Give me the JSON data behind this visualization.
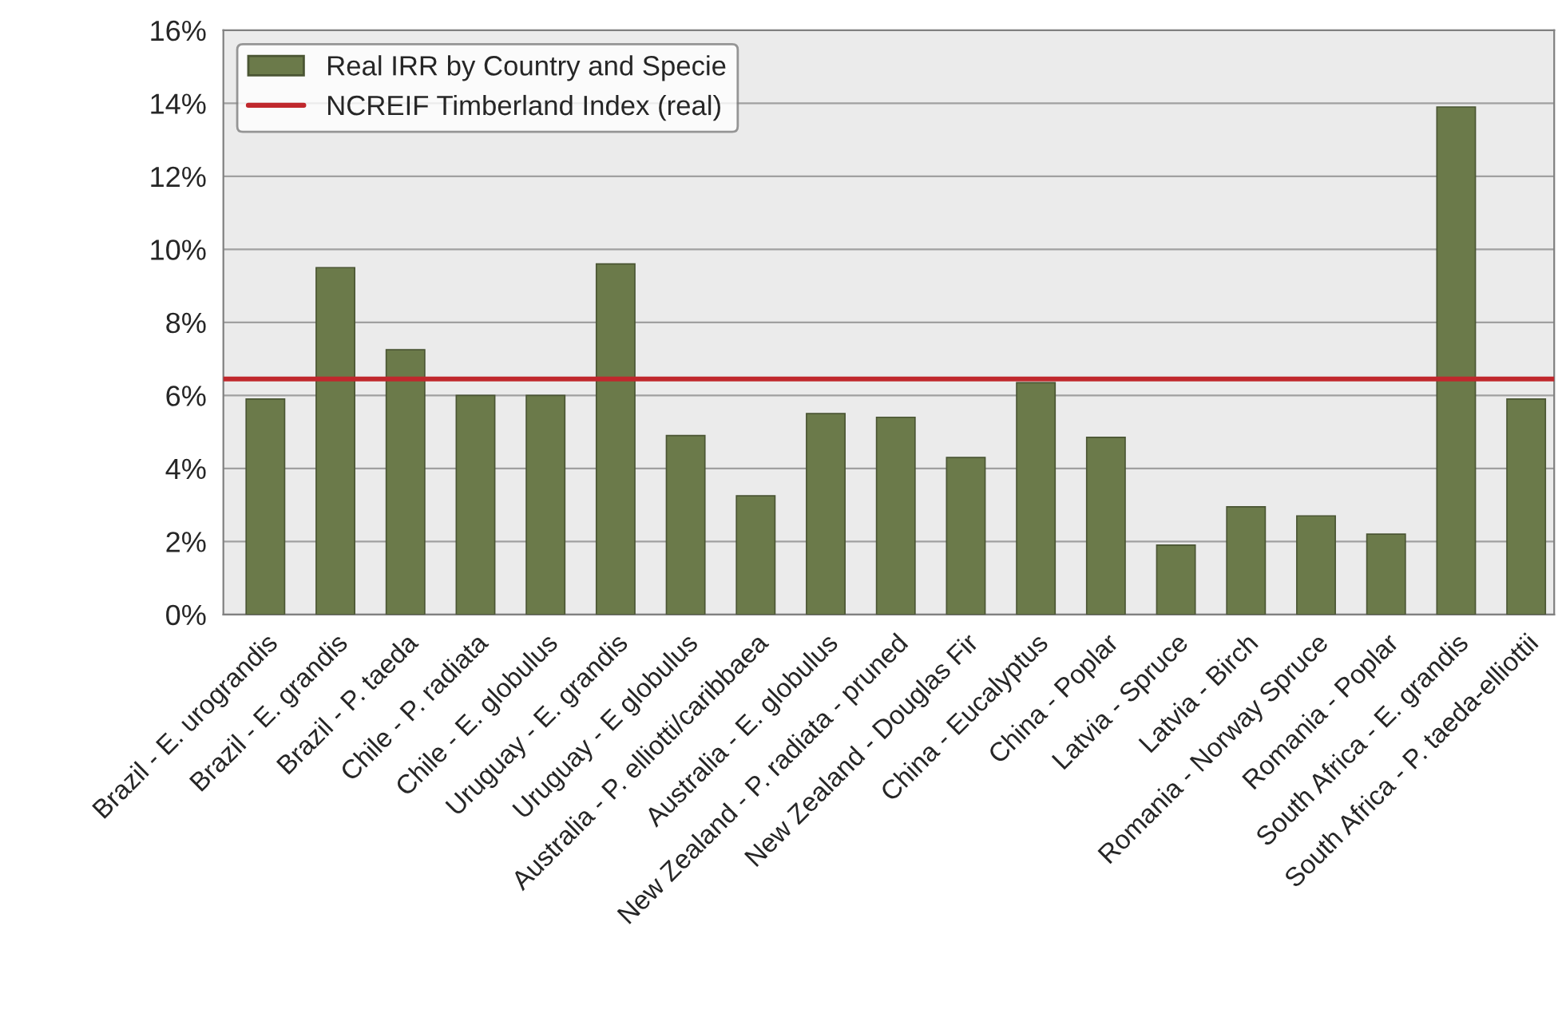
{
  "chart_data": {
    "type": "bar",
    "categories": [
      "Brazil - E. urograndis",
      "Brazil - E. grandis",
      "Brazil - P. taeda",
      "Chile - P. radiata",
      "Chile - E. globulus",
      "Uruguay - E. grandis",
      "Uruguay - E globulus",
      "Australia - P. elliotti/caribbaea",
      "Australia - E. globulus",
      "New Zealand - P. radiata - pruned",
      "New Zealand - Douglas Fir",
      "China - Eucalyptus",
      "China - Poplar",
      "Latvia - Spruce",
      "Latvia - Birch",
      "Romania - Norway Spruce",
      "Romania - Poplar",
      "South Africa - E. grandis",
      "South Africa - P. taeda-elliottii"
    ],
    "series": [
      {
        "name": "Real IRR by Country and Specie",
        "color": "#6b7a4a",
        "values": [
          5.9,
          9.5,
          7.25,
          6.0,
          6.0,
          9.6,
          4.9,
          3.25,
          5.5,
          5.4,
          4.3,
          6.35,
          4.85,
          1.9,
          2.95,
          2.7,
          2.2,
          13.9,
          5.9
        ]
      }
    ],
    "ref_lines": [
      {
        "axis": "y",
        "value": 6.45,
        "label": "NCREIF Timberland Index (real)",
        "color": "#c0282d"
      }
    ],
    "ylim": [
      0,
      16
    ],
    "yticks": [
      {
        "value": 0,
        "label": "0%"
      },
      {
        "value": 2,
        "label": "2%"
      },
      {
        "value": 4,
        "label": "4%"
      },
      {
        "value": 6,
        "label": "6%"
      },
      {
        "value": 8,
        "label": "8%"
      },
      {
        "value": 10,
        "label": "10%"
      },
      {
        "value": 12,
        "label": "12%"
      },
      {
        "value": 14,
        "label": "14%"
      },
      {
        "value": 16,
        "label": "16%"
      }
    ],
    "grid": "y",
    "legend": "top left"
  }
}
